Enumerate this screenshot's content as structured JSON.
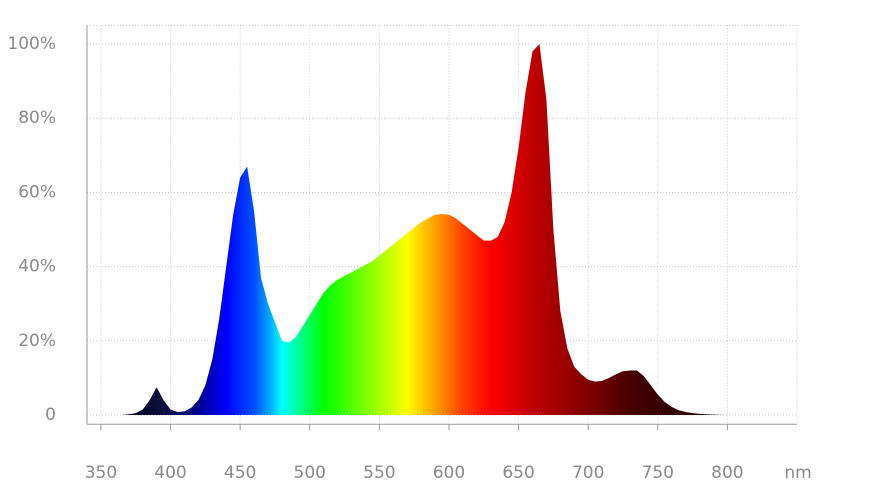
{
  "chart_data": {
    "type": "area",
    "x": [
      365,
      370,
      375,
      380,
      385,
      390,
      395,
      400,
      405,
      410,
      415,
      420,
      425,
      430,
      435,
      440,
      445,
      450,
      455,
      460,
      465,
      470,
      475,
      480,
      485,
      490,
      495,
      500,
      505,
      510,
      515,
      520,
      525,
      530,
      535,
      540,
      545,
      550,
      555,
      560,
      565,
      570,
      575,
      580,
      585,
      590,
      595,
      600,
      605,
      610,
      615,
      620,
      625,
      630,
      635,
      640,
      645,
      650,
      655,
      660,
      665,
      670,
      675,
      680,
      685,
      690,
      695,
      700,
      705,
      710,
      715,
      720,
      725,
      730,
      735,
      740,
      745,
      750,
      755,
      760,
      765,
      770,
      775,
      780,
      785,
      790,
      795,
      800
    ],
    "values": [
      0,
      0.2,
      0.5,
      1.5,
      4,
      7.5,
      4,
      1.5,
      0.8,
      1,
      2,
      4,
      8,
      15,
      26,
      40,
      54,
      64,
      67,
      55,
      37,
      30,
      25,
      20,
      19.5,
      21,
      24,
      27,
      30,
      33,
      35,
      36.5,
      37.5,
      38.5,
      39.5,
      40.5,
      41.5,
      43,
      44.5,
      46,
      47.5,
      49,
      50.5,
      52,
      53,
      54,
      54.2,
      54,
      53,
      51.5,
      50,
      48.5,
      47,
      47,
      48,
      52,
      60,
      72,
      87,
      98,
      100,
      85,
      50,
      28,
      18,
      13,
      11,
      9.5,
      9,
      9.2,
      10,
      11,
      11.8,
      12,
      12,
      10.5,
      8,
      5.5,
      3.5,
      2.2,
      1.3,
      0.8,
      0.5,
      0.3,
      0.2,
      0.1,
      0.05,
      0
    ],
    "fill_gradient": [
      {
        "x": 365,
        "color": "#000020"
      },
      {
        "x": 395,
        "color": "#101040"
      },
      {
        "x": 420,
        "color": "#000090"
      },
      {
        "x": 440,
        "color": "#0000ff"
      },
      {
        "x": 460,
        "color": "#0050ff"
      },
      {
        "x": 472,
        "color": "#00b0ff"
      },
      {
        "x": 480,
        "color": "#00ffff"
      },
      {
        "x": 495,
        "color": "#00ff80"
      },
      {
        "x": 510,
        "color": "#00ff00"
      },
      {
        "x": 545,
        "color": "#90ff00"
      },
      {
        "x": 570,
        "color": "#ffff00"
      },
      {
        "x": 590,
        "color": "#ffa000"
      },
      {
        "x": 610,
        "color": "#ff4000"
      },
      {
        "x": 630,
        "color": "#ff0000"
      },
      {
        "x": 660,
        "color": "#c00000"
      },
      {
        "x": 690,
        "color": "#900000"
      },
      {
        "x": 735,
        "color": "#400000"
      },
      {
        "x": 800,
        "color": "#200000"
      }
    ],
    "x_label": "nm",
    "xlim": [
      340,
      850
    ],
    "xticks": [
      350,
      400,
      450,
      500,
      550,
      600,
      650,
      700,
      750,
      800
    ],
    "ylim": [
      -2.5,
      105
    ],
    "yticks": [
      0,
      {
        "value": 20,
        "label": "20%"
      },
      {
        "value": 40,
        "label": "40%"
      },
      {
        "value": 60,
        "label": "60%"
      },
      {
        "value": 80,
        "label": "80%"
      },
      {
        "value": 100,
        "label": "100%"
      }
    ],
    "grid": true
  }
}
